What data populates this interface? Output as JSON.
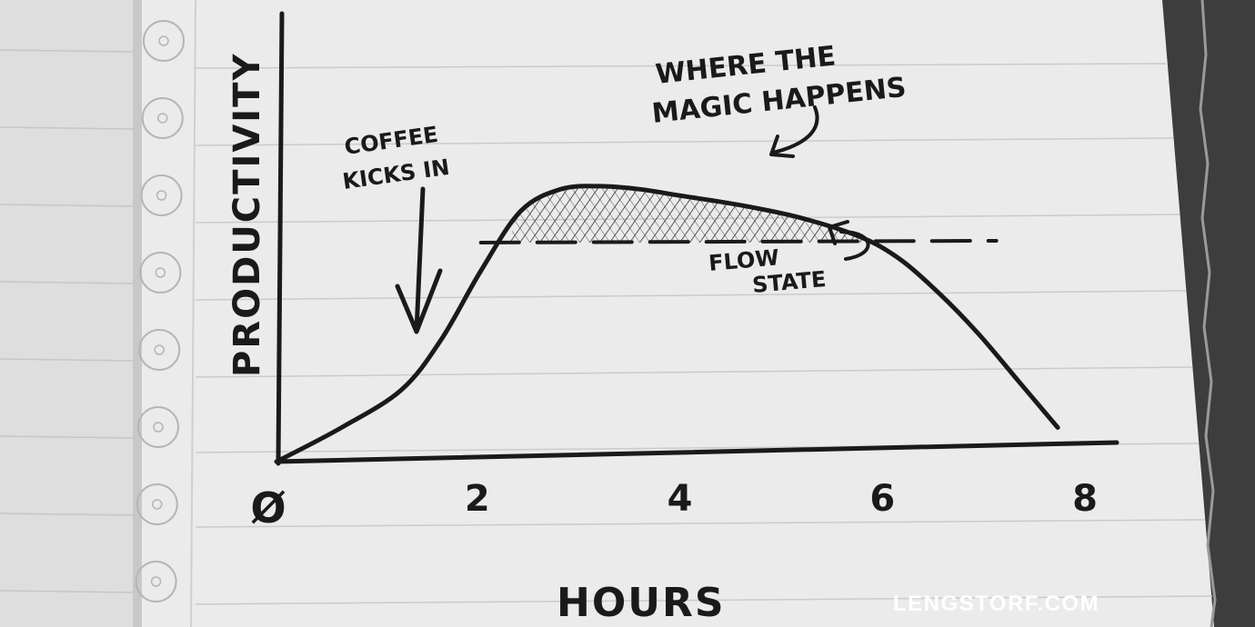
{
  "colors": {
    "ink": "#1a1a1a",
    "paper": "#ebebeb",
    "left_page": "#dedede",
    "binding": "#3d3d3d",
    "rule_line": "#c9c9c9",
    "watermark": "#ffffff"
  },
  "watermark": "LENGSTORF.COM",
  "annotations": {
    "coffee": [
      "COFFEE",
      "KICKS IN"
    ],
    "magic": [
      "WHERE THE",
      "MAGIC HAPPENS"
    ],
    "flow": [
      "FLOW",
      "STATE"
    ]
  },
  "chart_data": {
    "type": "line",
    "title": "",
    "xlabel": "HOURS",
    "ylabel": "PRODUCTIVITY",
    "x_ticks": [
      "Ø",
      "2",
      "4",
      "6",
      "8"
    ],
    "xlim": [
      0,
      8
    ],
    "ylim": [
      0,
      10
    ],
    "grid": false,
    "series": [
      {
        "x": [
          0,
          0.6,
          1.2,
          1.6,
          2.0,
          2.4,
          2.8,
          3.2,
          3.6,
          4.0,
          4.6,
          5.2,
          5.8,
          6.2,
          6.6,
          7.0,
          7.4,
          7.8
        ],
        "y": [
          0,
          1.0,
          2.2,
          3.8,
          6.0,
          7.9,
          8.6,
          8.7,
          8.6,
          8.4,
          8.1,
          7.7,
          7.1,
          6.4,
          5.3,
          4.0,
          2.5,
          1.0
        ]
      }
    ],
    "threshold": {
      "y": 6.9,
      "x_start": 2.0,
      "x_end": 7.0,
      "style": "dashed"
    },
    "shaded_region": {
      "between": "curve and threshold",
      "x_from": 2.4,
      "x_to": 6.0
    }
  }
}
